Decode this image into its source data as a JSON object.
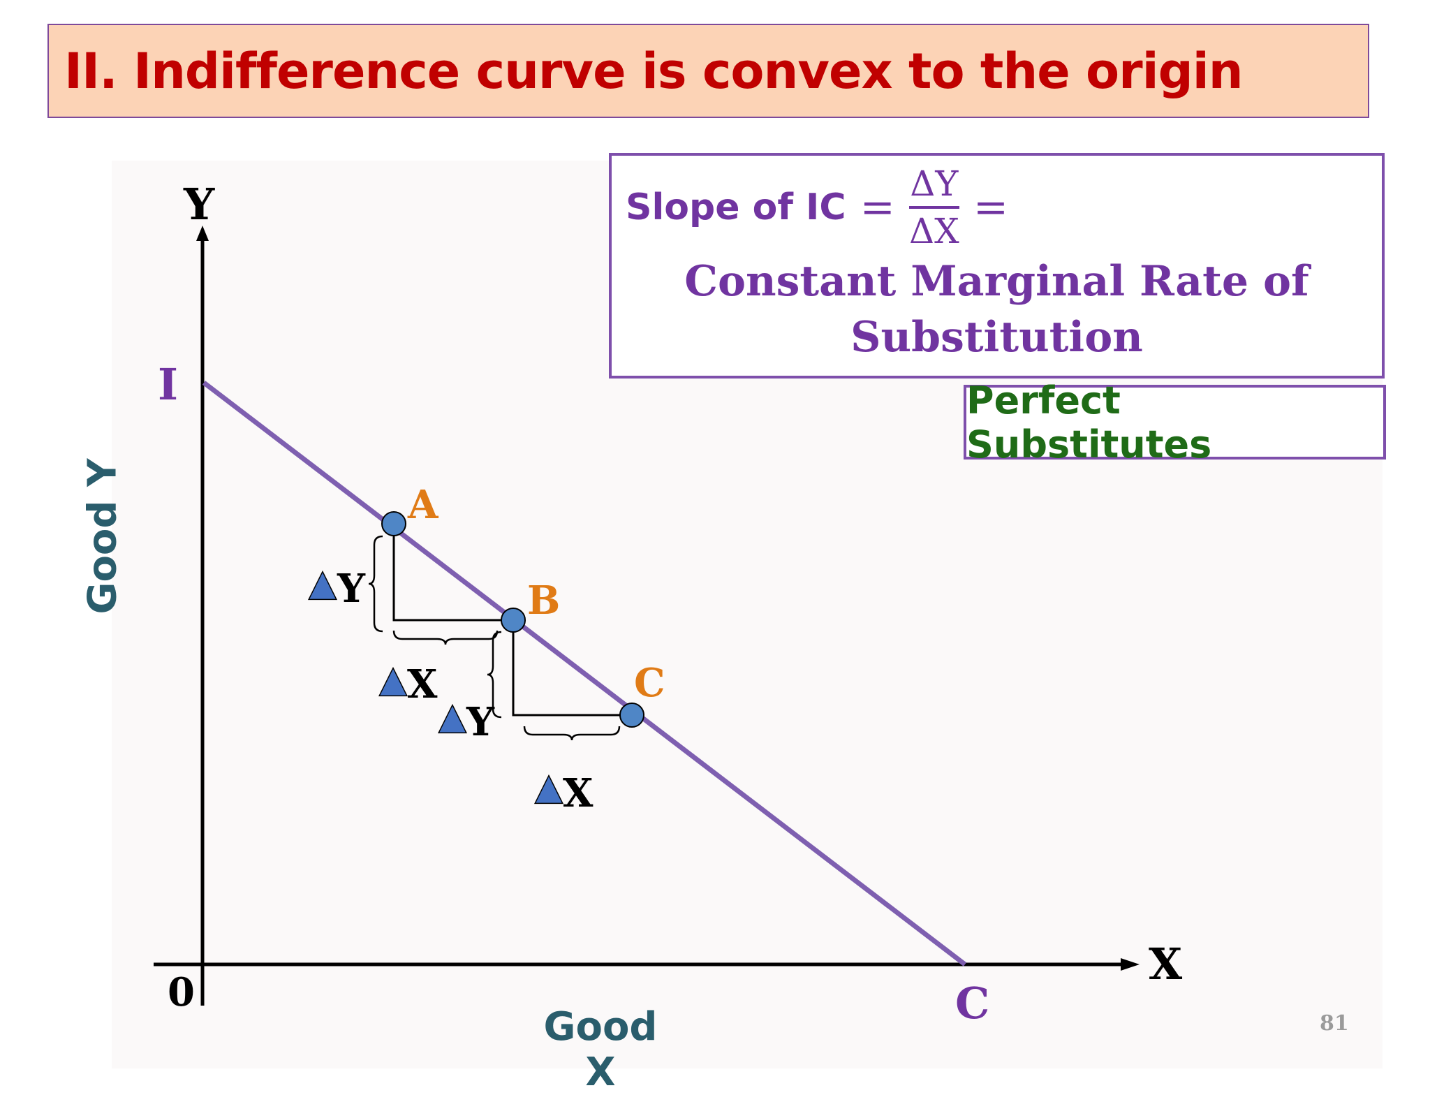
{
  "title": "II. Indifference curve is convex to the origin",
  "formula": {
    "prefix": "Slope of IC",
    "equals": "=",
    "numerator": "ΔY",
    "denominator": "ΔX",
    "description": "Constant Marginal Rate of Substitution"
  },
  "tag": "Perfect Substitutes",
  "axes": {
    "x_arrow_label": "X",
    "y_arrow_label": "Y",
    "origin_label": "0",
    "x_title": "Good X",
    "y_title": "Good Y"
  },
  "curve": {
    "y_intercept_label": "I",
    "x_intercept_label": "C",
    "color": "#7e5fb0",
    "points": [
      {
        "label": "A",
        "color": "#e07b16"
      },
      {
        "label": "B",
        "color": "#e07b16"
      },
      {
        "label": "C",
        "color": "#e07b16"
      }
    ]
  },
  "deltas": {
    "triangle_symbol": "▲",
    "y_letter": "Y",
    "x_letter": "X",
    "triangle_color": "#4472c4"
  },
  "page_number": "81"
}
